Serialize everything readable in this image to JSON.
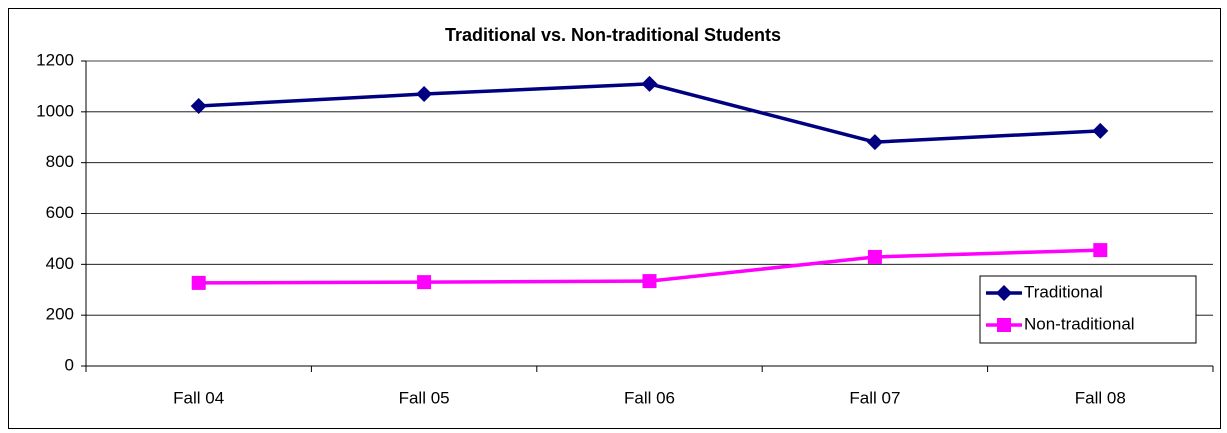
{
  "chart_data": {
    "type": "line",
    "title": "Traditional vs. Non-traditional Students",
    "categories": [
      "Fall 04",
      "Fall 05",
      "Fall 06",
      "Fall 07",
      "Fall 08"
    ],
    "series": [
      {
        "name": "Traditional",
        "color": "#000080",
        "marker": "diamond",
        "values": [
          1023,
          1070,
          1110,
          881,
          925
        ]
      },
      {
        "name": "Non-traditional",
        "color": "#ff00ff",
        "marker": "square",
        "values": [
          327,
          330,
          334,
          429,
          456
        ]
      }
    ],
    "ylim": [
      0,
      1200
    ],
    "yticks": [
      0,
      200,
      400,
      600,
      800,
      1000,
      1200
    ],
    "grid": true,
    "legend": "lower right"
  }
}
